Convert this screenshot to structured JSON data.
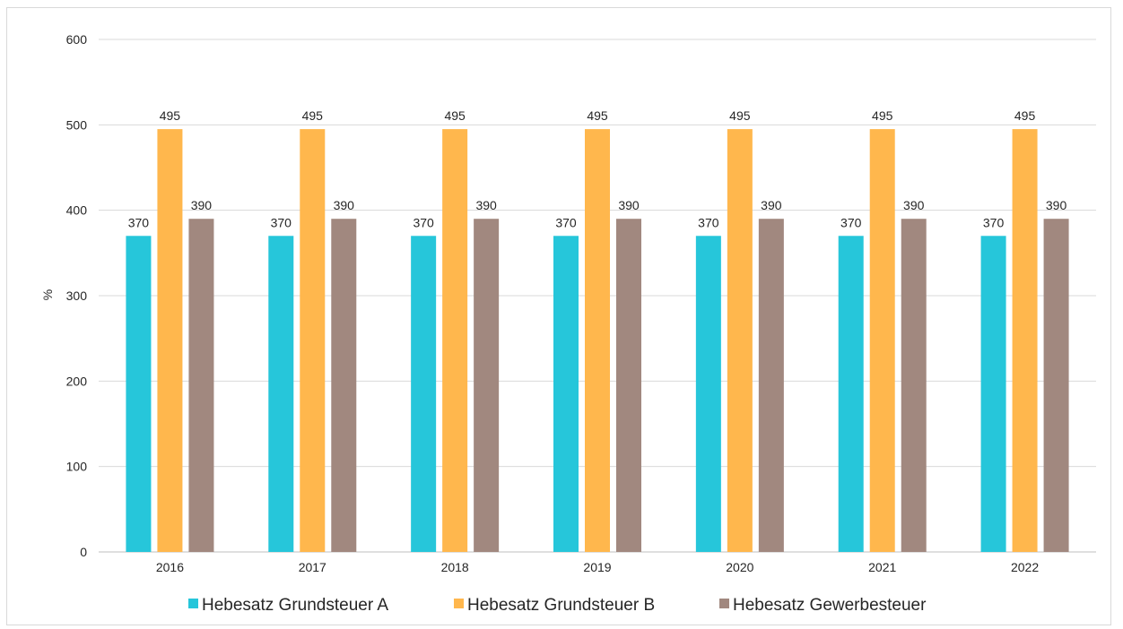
{
  "chart_data": {
    "type": "bar",
    "title": "",
    "xlabel": "",
    "ylabel": "%",
    "ylim": [
      0,
      600
    ],
    "yticks": [
      0,
      100,
      200,
      300,
      400,
      500,
      600
    ],
    "grid": true,
    "legend_position": "bottom",
    "categories": [
      "2016",
      "2017",
      "2018",
      "2019",
      "2020",
      "2021",
      "2022"
    ],
    "series": [
      {
        "name": "Hebesatz Grundsteuer A",
        "color": "#26c6da",
        "values": [
          370,
          370,
          370,
          370,
          370,
          370,
          370
        ]
      },
      {
        "name": "Hebesatz Grundsteuer B",
        "color": "#ffb74d",
        "values": [
          495,
          495,
          495,
          495,
          495,
          495,
          495
        ]
      },
      {
        "name": "Hebesatz Gewerbesteuer",
        "color": "#a1887f",
        "values": [
          390,
          390,
          390,
          390,
          390,
          390,
          390
        ]
      }
    ]
  }
}
